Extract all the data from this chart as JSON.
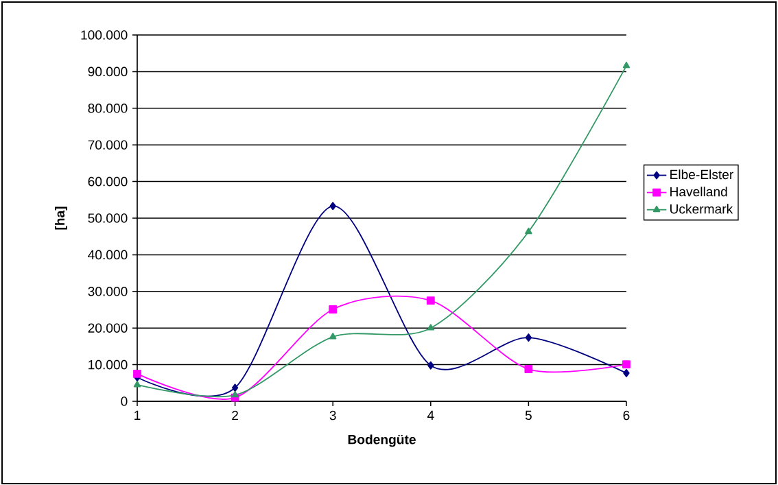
{
  "chart_data": {
    "type": "line",
    "xlabel": "Bodengüte",
    "ylabel": "[ha]",
    "x": [
      1,
      2,
      3,
      4,
      5,
      6
    ],
    "series": [
      {
        "name": "Elbe-Elster",
        "color": "#000080",
        "marker": "diamond",
        "values": [
          6500,
          3700,
          53300,
          9800,
          17400,
          7700
        ]
      },
      {
        "name": "Havelland",
        "color": "#ff00ff",
        "marker": "square",
        "values": [
          7500,
          1000,
          25100,
          27500,
          8800,
          10100
        ]
      },
      {
        "name": "Uckermark",
        "color": "#339966",
        "marker": "triangle",
        "values": [
          4500,
          1700,
          17600,
          20000,
          46300,
          91600
        ]
      }
    ],
    "xlim": [
      1,
      6
    ],
    "xticks": [
      1,
      2,
      3,
      4,
      5,
      6
    ],
    "ylim": [
      0,
      100000
    ],
    "yticks": [
      0,
      {
        "value": 10000,
        "label": "10.000"
      },
      {
        "value": 20000,
        "label": "20.000"
      },
      {
        "value": 30000,
        "label": "30.000"
      },
      {
        "value": 40000,
        "label": "40.000"
      },
      {
        "value": 50000,
        "label": "50.000"
      },
      {
        "value": 60000,
        "label": "60.000"
      },
      {
        "value": 70000,
        "label": "70.000"
      },
      {
        "value": 80000,
        "label": "80.000"
      },
      {
        "value": 90000,
        "label": "90.000"
      },
      {
        "value": 100000,
        "label": "100.000"
      }
    ],
    "grid": "y",
    "legend": "right",
    "line_style": "solid"
  }
}
